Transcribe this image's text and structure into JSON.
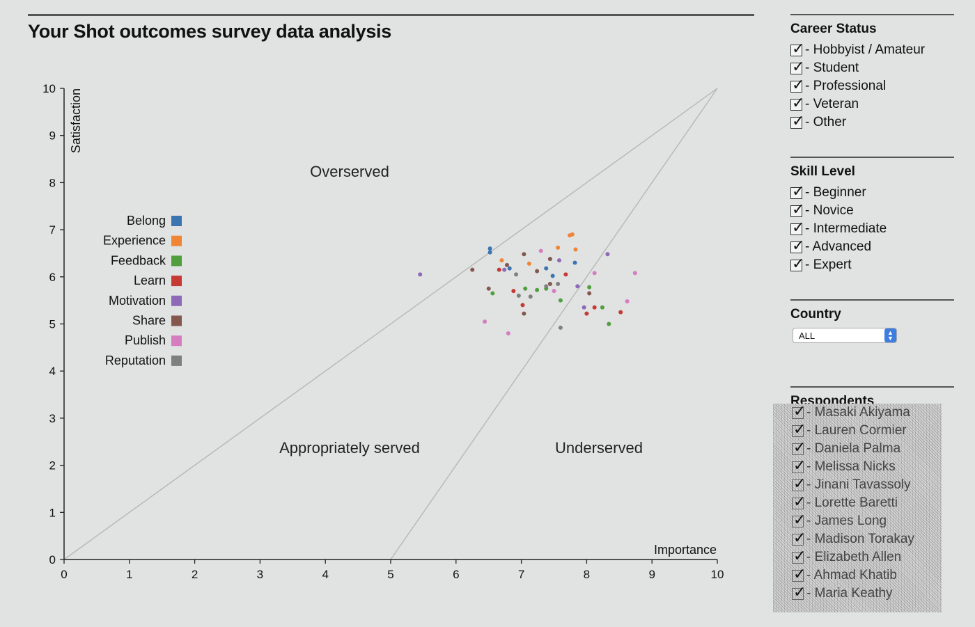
{
  "page": {
    "title": "Your Shot outcomes survey data analysis"
  },
  "chart_data": {
    "type": "scatter",
    "xlabel": "Importance",
    "ylabel": "Satisfaction",
    "xlim": [
      0,
      10
    ],
    "ylim": [
      0,
      10
    ],
    "xticks": [
      "0",
      "1",
      "2",
      "3",
      "4",
      "5",
      "6",
      "7",
      "8",
      "9",
      "10"
    ],
    "yticks": [
      "0",
      "1",
      "2",
      "3",
      "4",
      "5",
      "6",
      "7",
      "8",
      "9",
      "10"
    ],
    "region_labels": [
      "Overserved",
      "Appropriately served",
      "Underserved"
    ],
    "reference_lines": [
      {
        "from": [
          0,
          0
        ],
        "to": [
          10,
          10
        ]
      },
      {
        "from": [
          5,
          0
        ],
        "to": [
          10,
          10
        ]
      }
    ],
    "legend_position": "left",
    "series": [
      {
        "name": "Belong",
        "color": "#3b75af",
        "points": [
          [
            6.52,
            6.6
          ],
          [
            6.52,
            6.52
          ],
          [
            6.82,
            6.18
          ],
          [
            7.38,
            6.18
          ],
          [
            7.48,
            6.02
          ],
          [
            7.82,
            6.3
          ]
        ]
      },
      {
        "name": "Experience",
        "color": "#ef8636",
        "points": [
          [
            6.7,
            6.35
          ],
          [
            7.12,
            6.28
          ],
          [
            7.56,
            6.62
          ],
          [
            7.74,
            6.88
          ],
          [
            7.78,
            6.9
          ],
          [
            7.83,
            6.58
          ]
        ]
      },
      {
        "name": "Feedback",
        "color": "#519e3e",
        "points": [
          [
            6.56,
            5.65
          ],
          [
            7.06,
            5.75
          ],
          [
            7.24,
            5.72
          ],
          [
            7.38,
            5.75
          ],
          [
            7.6,
            5.5
          ],
          [
            8.04,
            5.78
          ],
          [
            8.24,
            5.35
          ],
          [
            8.34,
            5.0
          ]
        ]
      },
      {
        "name": "Learn",
        "color": "#c53a32",
        "points": [
          [
            6.66,
            6.15
          ],
          [
            6.88,
            5.7
          ],
          [
            7.02,
            5.4
          ],
          [
            7.68,
            6.05
          ],
          [
            8.0,
            5.22
          ],
          [
            8.12,
            5.35
          ],
          [
            8.52,
            5.25
          ]
        ]
      },
      {
        "name": "Motivation",
        "color": "#8d69b8",
        "points": [
          [
            5.45,
            6.05
          ],
          [
            6.74,
            6.15
          ],
          [
            7.58,
            6.35
          ],
          [
            7.86,
            5.8
          ],
          [
            7.96,
            5.35
          ],
          [
            8.32,
            6.48
          ]
        ]
      },
      {
        "name": "Share",
        "color": "#84584e",
        "points": [
          [
            6.25,
            6.15
          ],
          [
            6.5,
            5.75
          ],
          [
            6.78,
            6.25
          ],
          [
            7.04,
            6.48
          ],
          [
            7.04,
            5.22
          ],
          [
            7.24,
            6.12
          ],
          [
            7.44,
            6.38
          ],
          [
            7.44,
            5.85
          ],
          [
            8.04,
            5.65
          ]
        ]
      },
      {
        "name": "Publish",
        "color": "#d57dbf",
        "points": [
          [
            6.44,
            5.05
          ],
          [
            6.8,
            4.8
          ],
          [
            7.3,
            6.55
          ],
          [
            7.5,
            5.7
          ],
          [
            8.12,
            6.08
          ],
          [
            8.62,
            5.48
          ],
          [
            8.74,
            6.08
          ]
        ]
      },
      {
        "name": "Reputation",
        "color": "#7f7f7f",
        "points": [
          [
            6.92,
            6.05
          ],
          [
            6.96,
            5.6
          ],
          [
            7.14,
            5.58
          ],
          [
            7.38,
            5.8
          ],
          [
            7.56,
            5.85
          ],
          [
            7.6,
            4.92
          ]
        ]
      }
    ]
  },
  "sidebar": {
    "career": {
      "title": "Career Status",
      "items": [
        "- Hobbyist / Amateur",
        "- Student",
        "- Professional",
        "- Veteran",
        "- Other"
      ]
    },
    "skill": {
      "title": "Skill Level",
      "items": [
        "- Beginner",
        "- Novice",
        "- Intermediate",
        "- Advanced",
        "- Expert"
      ]
    },
    "country": {
      "title": "Country",
      "selected": "ALL"
    },
    "respondents": {
      "title": "Respondents",
      "items": [
        "- Masaki Akiyama",
        "- Lauren Cormier",
        "- Daniela Palma",
        "- Melissa Nicks",
        "- Jinani Tavassoly",
        "- Lorette Baretti",
        "- James Long",
        "- Madison Torakay",
        "- Elizabeth Allen",
        "- Ahmad Khatib",
        "- Maria Keathy"
      ]
    },
    "check_glyph": "✓"
  }
}
